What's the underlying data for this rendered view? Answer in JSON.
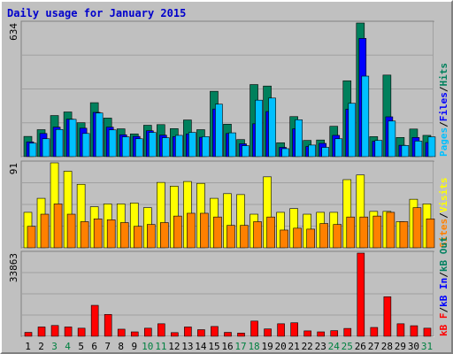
{
  "title": "Daily usage for January 2015",
  "colors": {
    "hits": "#00805c",
    "files": "#0000ff",
    "pages": "#00c0ff",
    "visits": "#ffff00",
    "sites": "#ff8000",
    "kbin": "#0000ff",
    "kbout": "#008060",
    "kbf": "#ff0000",
    "label_black": "#000000",
    "label_green": "#008040"
  },
  "chart_data": [
    {
      "type": "bar",
      "panel": "hits-files-pages",
      "categories": [
        "1",
        "2",
        "3",
        "4",
        "5",
        "6",
        "7",
        "8",
        "9",
        "10",
        "11",
        "12",
        "13",
        "14",
        "15",
        "16",
        "17",
        "18",
        "19",
        "20",
        "21",
        "22",
        "23",
        "24",
        "25",
        "26",
        "27",
        "28",
        "29",
        "30",
        "31"
      ],
      "weekend_days": [
        "3",
        "4",
        "10",
        "11",
        "17",
        "18",
        "24",
        "25",
        "31"
      ],
      "ylim": [
        0,
        634
      ],
      "max_label": "634",
      "right_labels": [
        "Pages",
        "/",
        "Files",
        "/",
        "Hits"
      ],
      "series": [
        {
          "name": "Hits",
          "values": [
            96,
            128,
            195,
            212,
            161,
            256,
            183,
            132,
            108,
            149,
            152,
            133,
            174,
            128,
            310,
            154,
            81,
            342,
            335,
            66,
            190,
            77,
            79,
            144,
            360,
            634,
            95,
            387,
            91,
            131,
            101
          ]
        },
        {
          "name": "Files",
          "values": [
            70,
            110,
            140,
            178,
            135,
            210,
            140,
            104,
            96,
            123,
            102,
            95,
            108,
            92,
            226,
            110,
            61,
            156,
            214,
            44,
            132,
            48,
            63,
            101,
            225,
            561,
            73,
            189,
            54,
            91,
            67
          ]
        },
        {
          "name": "Pages",
          "values": [
            64,
            85,
            129,
            177,
            110,
            207,
            127,
            94,
            85,
            115,
            90,
            101,
            115,
            95,
            249,
            113,
            52,
            268,
            278,
            38,
            175,
            55,
            44,
            85,
            253,
            382,
            77,
            169,
            53,
            74,
            94
          ]
        }
      ]
    },
    {
      "type": "bar",
      "panel": "visits-sites",
      "categories": [
        "1",
        "2",
        "3",
        "4",
        "5",
        "6",
        "7",
        "8",
        "9",
        "10",
        "11",
        "12",
        "13",
        "14",
        "15",
        "16",
        "17",
        "18",
        "19",
        "20",
        "21",
        "22",
        "23",
        "24",
        "25",
        "26",
        "27",
        "28",
        "29",
        "30",
        "31"
      ],
      "ylim": [
        0,
        91
      ],
      "max_label": "91",
      "right_labels": [
        "Sites",
        "/",
        "Visits"
      ],
      "series": [
        {
          "name": "Visits",
          "values": [
            38,
            53,
            91,
            82,
            68,
            44,
            47,
            47,
            48,
            43,
            70,
            66,
            71,
            69,
            53,
            58,
            57,
            36,
            76,
            38,
            42,
            36,
            38,
            38,
            73,
            78,
            39,
            39,
            28,
            52,
            47
          ]
        },
        {
          "name": "Sites",
          "values": [
            23,
            36,
            47,
            36,
            28,
            31,
            30,
            27,
            23,
            25,
            27,
            34,
            37,
            37,
            33,
            24,
            24,
            28,
            33,
            19,
            21,
            20,
            26,
            25,
            33,
            33,
            34,
            38,
            28,
            43,
            31
          ]
        }
      ]
    },
    {
      "type": "bar",
      "panel": "kbf-kbin-kbout",
      "categories": [
        "1",
        "2",
        "3",
        "4",
        "5",
        "6",
        "7",
        "8",
        "9",
        "10",
        "11",
        "12",
        "13",
        "14",
        "15",
        "16",
        "17",
        "18",
        "19",
        "20",
        "21",
        "22",
        "23",
        "24",
        "25",
        "26",
        "27",
        "28",
        "29",
        "30",
        "31"
      ],
      "ylim": [
        0,
        33863
      ],
      "max_label": "33863",
      "right_labels": [
        "kB F",
        "/",
        "kB In",
        "/",
        "kB Out"
      ],
      "series": [
        {
          "name": "kB F",
          "values": [
            1600,
            3800,
            4400,
            3800,
            3300,
            12600,
            8900,
            2900,
            1800,
            3300,
            5100,
            1500,
            3800,
            2700,
            4000,
            1600,
            1300,
            6200,
            3000,
            5100,
            5500,
            2200,
            1800,
            2300,
            3200,
            33863,
            3600,
            16100,
            5100,
            4300,
            3300
          ]
        }
      ]
    }
  ]
}
